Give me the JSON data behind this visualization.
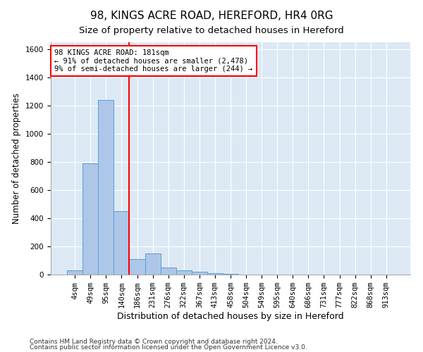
{
  "title_line1": "98, KINGS ACRE ROAD, HEREFORD, HR4 0RG",
  "title_line2": "Size of property relative to detached houses in Hereford",
  "xlabel": "Distribution of detached houses by size in Hereford",
  "ylabel": "Number of detached properties",
  "footnote1": "Contains HM Land Registry data © Crown copyright and database right 2024.",
  "footnote2": "Contains public sector information licensed under the Open Government Licence v3.0.",
  "bar_labels": [
    "4sqm",
    "49sqm",
    "95sqm",
    "140sqm",
    "186sqm",
    "231sqm",
    "276sqm",
    "322sqm",
    "367sqm",
    "413sqm",
    "458sqm",
    "504sqm",
    "549sqm",
    "595sqm",
    "640sqm",
    "686sqm",
    "731sqm",
    "777sqm",
    "822sqm",
    "868sqm",
    "913sqm"
  ],
  "bar_values": [
    30,
    790,
    1240,
    450,
    110,
    150,
    50,
    30,
    20,
    10,
    3,
    0,
    0,
    0,
    0,
    0,
    0,
    0,
    0,
    0,
    0
  ],
  "bar_color": "#aec6e8",
  "bar_edge_color": "#5a9fd4",
  "background_color": "#dce9f5",
  "grid_color": "#ffffff",
  "vline_x": 3.5,
  "vline_color": "red",
  "annotation_line1": "98 KINGS ACRE ROAD: 181sqm",
  "annotation_line2": "← 91% of detached houses are smaller (2,478)",
  "annotation_line3": "9% of semi-detached houses are larger (244) →",
  "annotation_box_color": "white",
  "annotation_box_edge": "red",
  "ylim": [
    0,
    1650
  ],
  "yticks": [
    0,
    200,
    400,
    600,
    800,
    1000,
    1200,
    1400,
    1600
  ],
  "title_fontsize": 11,
  "subtitle_fontsize": 9.5,
  "xlabel_fontsize": 9,
  "ylabel_fontsize": 8.5,
  "tick_fontsize": 7.5,
  "annotation_fontsize": 7.5,
  "footnote_fontsize": 6.5
}
